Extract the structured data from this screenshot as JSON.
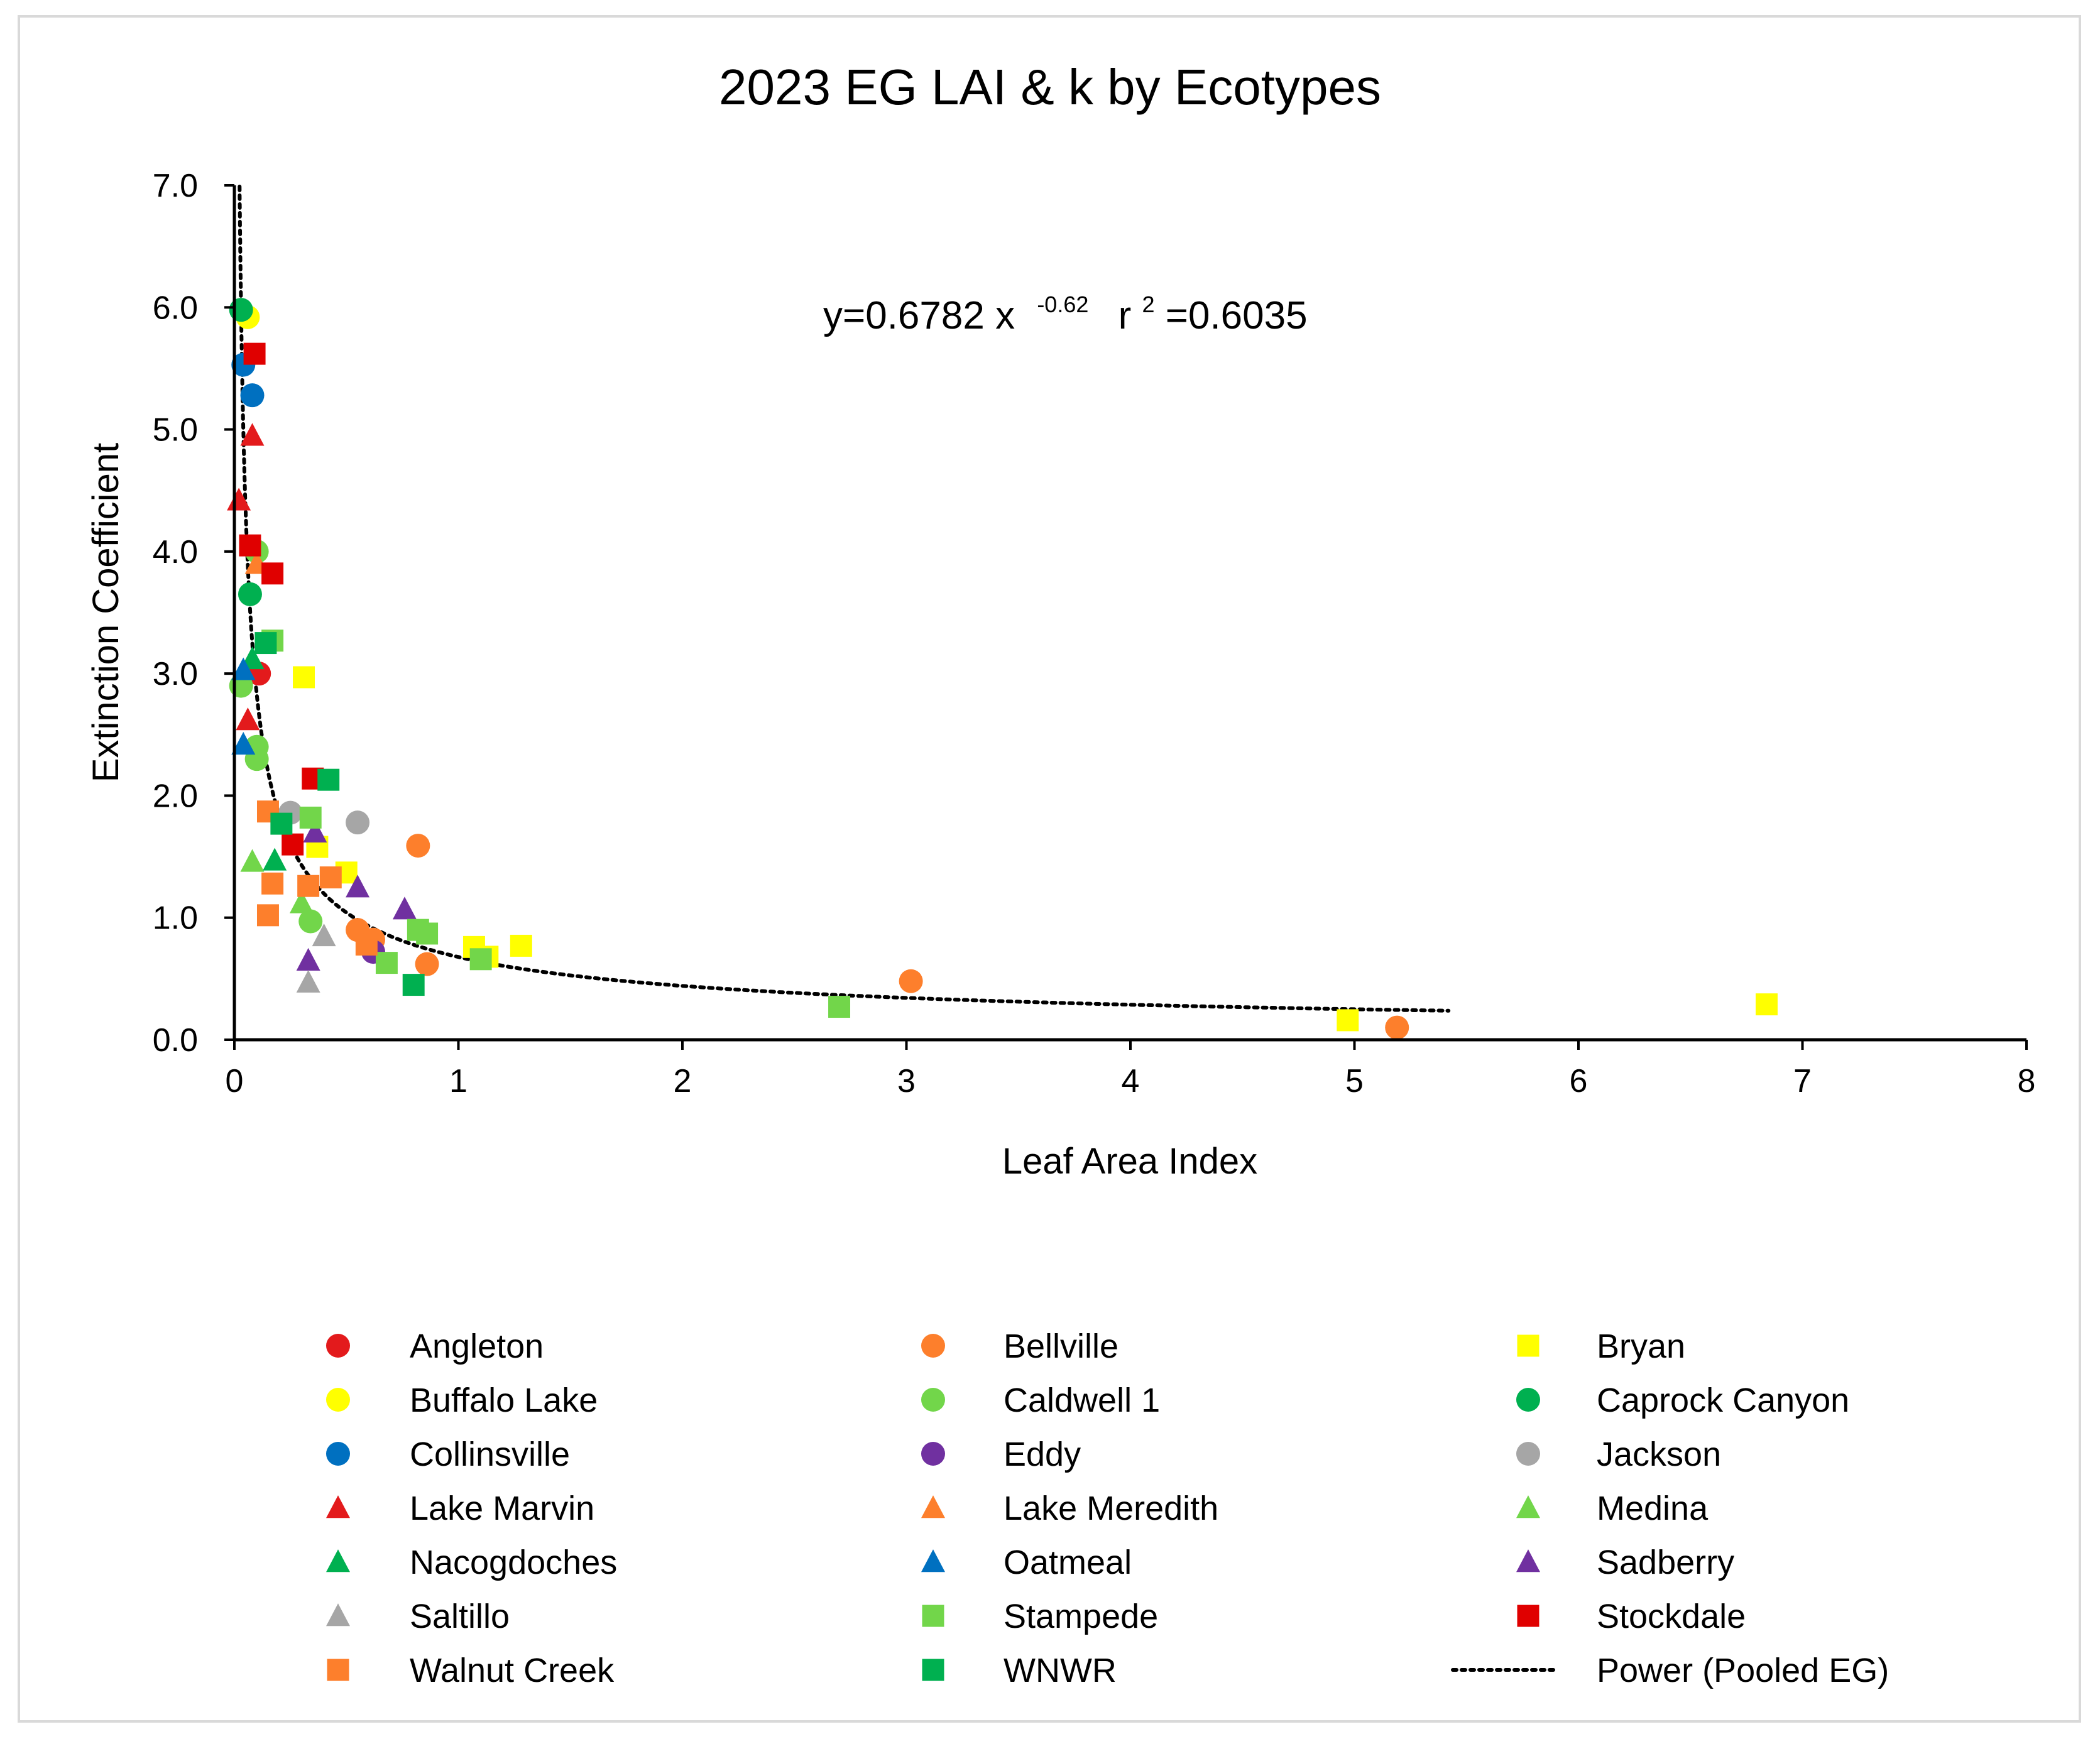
{
  "chart_data": {
    "type": "scatter",
    "title": "2023 EG LAI & k by Ecotypes",
    "xlabel": "Leaf Area Index",
    "ylabel": "Extinction Coefficient",
    "xlim": [
      0,
      8
    ],
    "ylim": [
      0,
      7
    ],
    "xticks": [
      "0",
      "1",
      "2",
      "3",
      "4",
      "5",
      "6",
      "7",
      "8"
    ],
    "yticks": [
      "0.0",
      "1.0",
      "2.0",
      "3.0",
      "4.0",
      "5.0",
      "6.0",
      "7.0"
    ],
    "annotation": {
      "prefix": "y=0.6782 x",
      "exponent": "-0.62",
      "r2_label": "r",
      "r2_sup": "2",
      "r2_value": "=0.6035"
    },
    "trendline": {
      "name": "Power (Pooled EG)",
      "a": 0.6782,
      "b": -0.62,
      "x_range": [
        0.02,
        5.42
      ]
    },
    "series": [
      {
        "name": "Angleton",
        "color": "#e31a1c",
        "marker": "circle",
        "points": [
          [
            0.11,
            3.0
          ]
        ]
      },
      {
        "name": "Bellville",
        "color": "#fd7f2c",
        "marker": "circle",
        "points": [
          [
            0.82,
            1.59
          ],
          [
            0.55,
            0.9
          ],
          [
            0.86,
            0.62
          ],
          [
            0.62,
            0.82
          ],
          [
            3.02,
            0.48
          ],
          [
            5.19,
            0.1
          ]
        ]
      },
      {
        "name": "Bryan",
        "color": "#ffff00",
        "marker": "square",
        "points": [
          [
            0.31,
            2.97
          ],
          [
            0.37,
            1.58
          ],
          [
            0.5,
            1.37
          ],
          [
            1.07,
            0.76
          ],
          [
            1.28,
            0.77
          ],
          [
            1.13,
            0.68
          ],
          [
            4.97,
            0.16
          ],
          [
            6.84,
            0.29
          ]
        ]
      },
      {
        "name": "Buffalo Lake",
        "color": "#ffff00",
        "marker": "circle",
        "points": [
          [
            0.06,
            5.92
          ]
        ]
      },
      {
        "name": "Caldwell 1",
        "color": "#72d64a",
        "marker": "circle",
        "points": [
          [
            0.1,
            2.4
          ],
          [
            0.1,
            2.3
          ],
          [
            0.34,
            0.97
          ],
          [
            0.03,
            2.9
          ],
          [
            0.1,
            4.0
          ]
        ]
      },
      {
        "name": "Caprock Canyon",
        "color": "#00b050",
        "marker": "circle",
        "points": [
          [
            0.03,
            5.98
          ],
          [
            0.07,
            3.65
          ]
        ]
      },
      {
        "name": "Collinsville",
        "color": "#0070c0",
        "marker": "circle",
        "points": [
          [
            0.04,
            5.53
          ],
          [
            0.08,
            5.28
          ]
        ]
      },
      {
        "name": "Eddy",
        "color": "#7030a0",
        "marker": "circle",
        "points": [
          [
            0.62,
            0.72
          ]
        ]
      },
      {
        "name": "Jackson",
        "color": "#a6a6a6",
        "marker": "circle",
        "points": [
          [
            0.55,
            1.78
          ],
          [
            0.25,
            1.86
          ]
        ]
      },
      {
        "name": "Lake Marvin",
        "color": "#e31a1c",
        "marker": "triangle",
        "points": [
          [
            0.02,
            4.42
          ],
          [
            0.08,
            4.95
          ],
          [
            0.06,
            2.62
          ]
        ]
      },
      {
        "name": "Lake Meredith",
        "color": "#fd7f2c",
        "marker": "triangle",
        "points": [
          [
            0.1,
            3.9
          ]
        ]
      },
      {
        "name": "Medina",
        "color": "#72d64a",
        "marker": "triangle",
        "points": [
          [
            0.08,
            1.46
          ],
          [
            0.3,
            1.12
          ]
        ]
      },
      {
        "name": "Nacogdoches",
        "color": "#00b050",
        "marker": "triangle",
        "points": [
          [
            0.18,
            1.47
          ],
          [
            0.08,
            3.12
          ]
        ]
      },
      {
        "name": "Oatmeal",
        "color": "#0070c0",
        "marker": "triangle",
        "points": [
          [
            0.04,
            3.03
          ],
          [
            0.04,
            2.42
          ]
        ]
      },
      {
        "name": "Sadberry",
        "color": "#7030a0",
        "marker": "triangle",
        "points": [
          [
            0.36,
            1.7
          ],
          [
            0.55,
            1.25
          ],
          [
            0.76,
            1.07
          ],
          [
            0.33,
            0.65
          ]
        ]
      },
      {
        "name": "Saltillo",
        "color": "#a6a6a6",
        "marker": "triangle",
        "points": [
          [
            0.4,
            0.85
          ],
          [
            0.33,
            0.47
          ]
        ]
      },
      {
        "name": "Stampede",
        "color": "#72d64a",
        "marker": "square",
        "points": [
          [
            0.17,
            3.27
          ],
          [
            0.34,
            1.82
          ],
          [
            0.82,
            0.9
          ],
          [
            0.86,
            0.87
          ],
          [
            0.68,
            0.63
          ],
          [
            1.1,
            0.66
          ],
          [
            2.7,
            0.27
          ]
        ]
      },
      {
        "name": "Stockdale",
        "color": "#e00000",
        "marker": "square",
        "points": [
          [
            0.09,
            5.62
          ],
          [
            0.07,
            4.05
          ],
          [
            0.17,
            3.82
          ],
          [
            0.35,
            2.14
          ],
          [
            0.26,
            1.6
          ]
        ]
      },
      {
        "name": "Walnut Creek",
        "color": "#fd7f2c",
        "marker": "square",
        "points": [
          [
            0.15,
            1.87
          ],
          [
            0.17,
            1.28
          ],
          [
            0.15,
            1.02
          ],
          [
            0.43,
            1.33
          ],
          [
            0.33,
            1.26
          ],
          [
            0.59,
            0.78
          ]
        ]
      },
      {
        "name": "WNWR",
        "color": "#00b050",
        "marker": "square",
        "points": [
          [
            0.42,
            2.13
          ],
          [
            0.21,
            1.77
          ],
          [
            0.14,
            3.25
          ],
          [
            0.8,
            0.45
          ]
        ]
      }
    ],
    "legend": {
      "position": "bottom",
      "order": [
        "Angleton",
        "Bellville",
        "Bryan",
        "Buffalo Lake",
        "Caldwell 1",
        "Caprock Canyon",
        "Collinsville",
        "Eddy",
        "Jackson",
        "Lake Marvin",
        "Lake Meredith",
        "Medina",
        "Nacogdoches",
        "Oatmeal",
        "Sadberry",
        "Saltillo",
        "Stampede",
        "Stockdale",
        "Walnut Creek",
        "WNWR",
        "Power (Pooled EG)"
      ]
    }
  }
}
